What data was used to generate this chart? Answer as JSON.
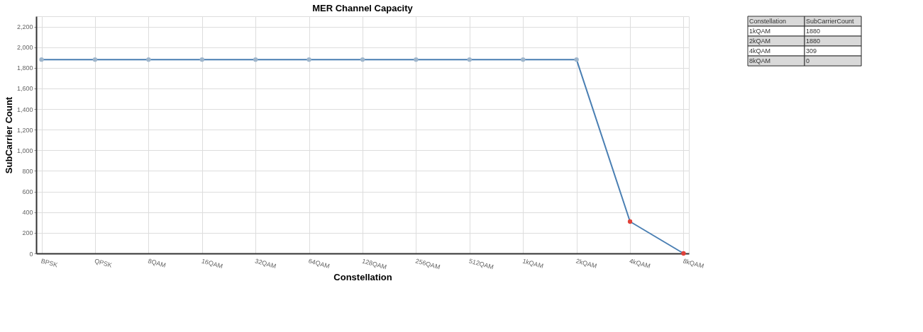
{
  "chart_data": {
    "type": "line",
    "title": "MER Channel Capacity",
    "xlabel": "Constellation",
    "ylabel": "SubCarrier Count",
    "categories": [
      "BPSK",
      "QPSK",
      "8QAM",
      "16QAM",
      "32QAM",
      "64QAM",
      "128QAM",
      "256QAM",
      "512QAM",
      "1kQAM",
      "2kQAM",
      "4kQAM",
      "8kQAM"
    ],
    "series": [
      {
        "color": "#4a7fb3",
        "values": [
          1880,
          1880,
          1880,
          1880,
          1880,
          1880,
          1880,
          1880,
          1880,
          1880,
          1880,
          309,
          0
        ],
        "colors": [
          "#9fb6cc",
          "#9fb6cc",
          "#9fb6cc",
          "#9fb6cc",
          "#9fb6cc",
          "#9fb6cc",
          "#9fb6cc",
          "#9fb6cc",
          "#9fb6cc",
          "#9fb6cc",
          "#9fb6cc",
          "#e0413a",
          "#e0413a"
        ]
      }
    ],
    "annotations": [
      "Constellation",
      "SubCarrierCount",
      "1kQAM",
      "1880",
      "2kQAM",
      "1880",
      "4kQAM",
      "309",
      "8kQAM",
      "0"
    ],
    "ylim": [
      0,
      2300
    ],
    "yticks": [
      0,
      200,
      400,
      600,
      800,
      {
        "value": 1000,
        "label": "1,000"
      },
      {
        "value": 1200,
        "label": "1,200"
      },
      {
        "value": 1400,
        "label": "1,400"
      },
      {
        "value": 1600,
        "label": "1,600"
      },
      {
        "value": 1800,
        "label": "1,800"
      },
      {
        "value": 2000,
        "label": "2,000"
      },
      {
        "value": 2200,
        "label": "2,200"
      }
    ],
    "grid": true,
    "marker": "circle",
    "line_style": "solid"
  }
}
